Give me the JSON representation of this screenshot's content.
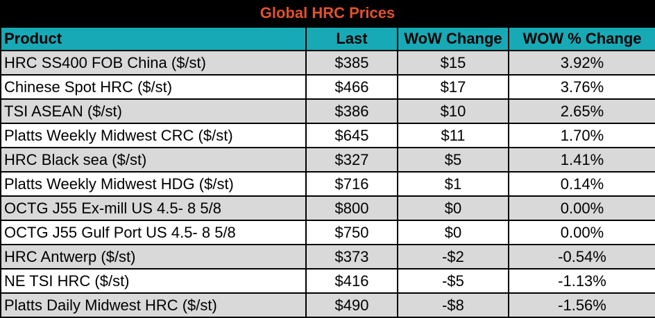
{
  "title": "Global HRC Prices",
  "headers": {
    "product": "Product",
    "last": "Last",
    "wow_change": "WoW Change",
    "wow_pct_change": "WOW % Change"
  },
  "rows": [
    {
      "product": "HRC SS400 FOB China ($/st)",
      "last": "$385",
      "wow_change": "$15",
      "wow_pct": "3.92%"
    },
    {
      "product": "Chinese Spot HRC ($/st)",
      "last": "$466",
      "wow_change": "$17",
      "wow_pct": "3.76%"
    },
    {
      "product": "TSI ASEAN ($/st)",
      "last": "$386",
      "wow_change": "$10",
      "wow_pct": "2.65%"
    },
    {
      "product": "Platts Weekly Midwest CRC ($/st)",
      "last": "$645",
      "wow_change": "$11",
      "wow_pct": "1.70%"
    },
    {
      "product": "HRC Black sea ($/st)",
      "last": "$327",
      "wow_change": "$5",
      "wow_pct": "1.41%"
    },
    {
      "product": "Platts Weekly Midwest HDG ($/st)",
      "last": "$716",
      "wow_change": "$1",
      "wow_pct": "0.14%"
    },
    {
      "product": "OCTG J55 Ex-mill US 4.5- 8 5/8",
      "last": "$800",
      "wow_change": "$0",
      "wow_pct": "0.00%"
    },
    {
      "product": "OCTG J55 Gulf Port US 4.5- 8 5/8",
      "last": "$750",
      "wow_change": "$0",
      "wow_pct": "0.00%"
    },
    {
      "product": "HRC Antwerp ($/st)",
      "last": "$373",
      "wow_change": "-$2",
      "wow_pct": "-0.54%"
    },
    {
      "product": "NE TSI HRC ($/st)",
      "last": "$416",
      "wow_change": "-$5",
      "wow_pct": "-1.13%"
    },
    {
      "product": "Platts Daily Midwest HRC ($/st)",
      "last": "$490",
      "wow_change": "-$8",
      "wow_pct": "-1.56%"
    }
  ],
  "colors": {
    "title_bg": "#000000",
    "title_text": "#e2522a",
    "header_bg": "#18a9b6",
    "row_shade": "#d9d9d9",
    "row_plain": "#ffffff"
  }
}
